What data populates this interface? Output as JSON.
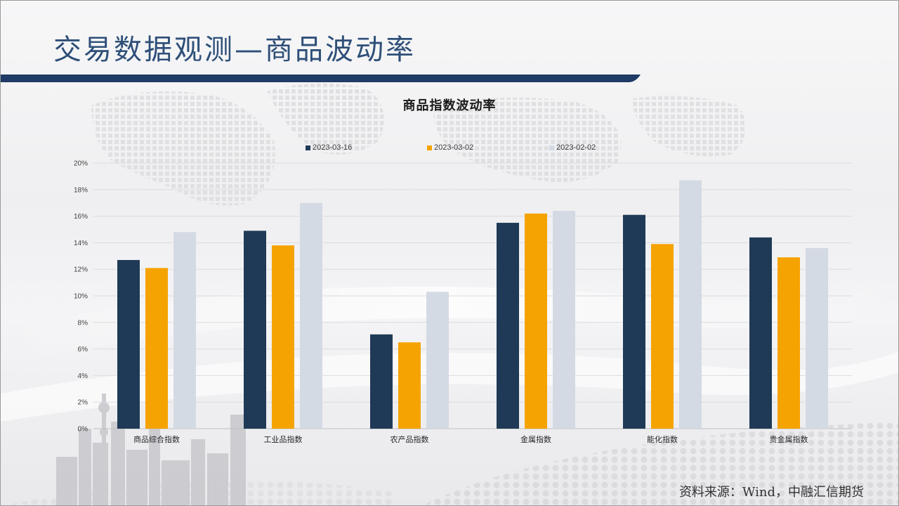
{
  "page": {
    "title": "交易数据观测—商品波动率",
    "source": "资料来源：Wind，中融汇信期货",
    "colors": {
      "title": "#2e4f78",
      "underline": "#1f3b66",
      "series1": "#1f3a56",
      "series2": "#f5a300",
      "series3": "#d4dae3"
    }
  },
  "chart_data": {
    "type": "bar",
    "title": "商品指数波动率",
    "categories": [
      "商品综合指数",
      "工业品指数",
      "农产品指数",
      "金属指数",
      "能化指数",
      "贵金属指数"
    ],
    "series": [
      {
        "name": "2023-03-16",
        "color": "#1f3a56",
        "values": [
          12.7,
          14.9,
          7.1,
          15.5,
          16.1,
          14.4
        ]
      },
      {
        "name": "2023-03-02",
        "color": "#f5a300",
        "values": [
          12.1,
          13.8,
          6.5,
          16.2,
          13.9,
          12.9
        ]
      },
      {
        "name": "2023-02-02",
        "color": "#d4dae3",
        "values": [
          14.8,
          17.0,
          10.3,
          16.4,
          18.7,
          13.6
        ]
      }
    ],
    "yticks": [
      "0%",
      "2%",
      "4%",
      "6%",
      "8%",
      "10%",
      "12%",
      "14%",
      "16%",
      "18%",
      "20%"
    ],
    "ylim": [
      0,
      20
    ],
    "xlabel": "",
    "ylabel": "",
    "grid": true,
    "legend_position": "top"
  }
}
